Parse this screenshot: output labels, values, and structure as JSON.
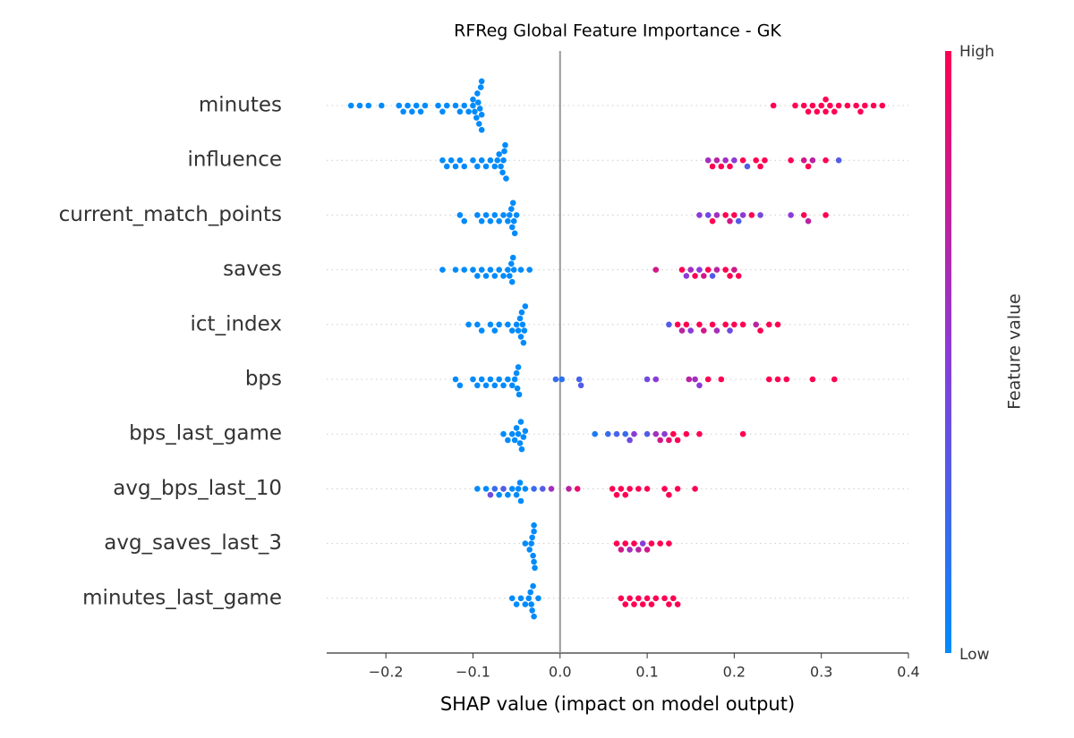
{
  "chart_data": {
    "type": "beeswarm",
    "title": "RFReg Global Feature Importance - GK",
    "xlabel": "SHAP value (impact on model output)",
    "xlim": [
      -0.268,
      0.4
    ],
    "xticks": [
      {
        "value": -0.2,
        "label": "−0.2"
      },
      {
        "value": -0.1,
        "label": "−0.1"
      },
      {
        "value": 0,
        "label": "0.0"
      },
      0.1,
      0.2,
      0.3,
      0.4
    ],
    "colorbar": {
      "label": "Feature value",
      "low": "Low",
      "high": "High",
      "low_color": "#008bfb",
      "mid_color": "#8b3bd8",
      "high_color": "#ff0052"
    },
    "series": [
      {
        "name": "minutes",
        "values": [
          -0.24,
          -0.23,
          -0.22,
          -0.205,
          -0.185,
          -0.18,
          -0.175,
          -0.17,
          -0.165,
          -0.16,
          -0.155,
          -0.14,
          -0.135,
          -0.13,
          -0.12,
          -0.115,
          -0.11,
          -0.105,
          -0.1,
          -0.1,
          -0.098,
          -0.096,
          -0.095,
          -0.094,
          -0.093,
          -0.092,
          -0.091,
          -0.09,
          -0.09,
          -0.09,
          0.245,
          0.27,
          0.28,
          0.285,
          0.29,
          0.295,
          0.3,
          0.305,
          0.305,
          0.31,
          0.315,
          0.32,
          0.33,
          0.34,
          0.345,
          0.35,
          0.36,
          0.37
        ],
        "feature_values": [
          0,
          0,
          0,
          0,
          0,
          0,
          0,
          0,
          0,
          0,
          0,
          0,
          0,
          0,
          0,
          0,
          0,
          0,
          0,
          0,
          0,
          0,
          0,
          0,
          0,
          0,
          0,
          0,
          0,
          0,
          1,
          1,
          1,
          1,
          1,
          1,
          1,
          1,
          1,
          1,
          1,
          1,
          1,
          1,
          1,
          1,
          1,
          1
        ]
      },
      {
        "name": "influence",
        "values": [
          -0.135,
          -0.13,
          -0.125,
          -0.12,
          -0.115,
          -0.11,
          -0.1,
          -0.095,
          -0.09,
          -0.085,
          -0.08,
          -0.075,
          -0.072,
          -0.07,
          -0.068,
          -0.066,
          -0.065,
          -0.064,
          -0.063,
          -0.062,
          0.17,
          0.175,
          0.18,
          0.185,
          0.19,
          0.195,
          0.2,
          0.21,
          0.215,
          0.225,
          0.23,
          0.235,
          0.265,
          0.28,
          0.285,
          0.29,
          0.305,
          0.32
        ],
        "feature_values": [
          0,
          0,
          0,
          0,
          0,
          0,
          0,
          0,
          0,
          0,
          0,
          0,
          0,
          0,
          0,
          0,
          0,
          0,
          0,
          0,
          0.6,
          1,
          0.7,
          1,
          0.6,
          1,
          0.5,
          1,
          0.3,
          1,
          1,
          1,
          1,
          0.8,
          1,
          0.7,
          1,
          0.3
        ]
      },
      {
        "name": "current_match_points",
        "values": [
          -0.115,
          -0.11,
          -0.095,
          -0.09,
          -0.085,
          -0.08,
          -0.075,
          -0.07,
          -0.065,
          -0.06,
          -0.058,
          -0.056,
          -0.055,
          -0.054,
          -0.053,
          -0.052,
          -0.05,
          0.16,
          0.17,
          0.175,
          0.18,
          0.19,
          0.195,
          0.2,
          0.205,
          0.21,
          0.22,
          0.23,
          0.265,
          0.28,
          0.285,
          0.305
        ],
        "feature_values": [
          0,
          0,
          0,
          0,
          0,
          0,
          0,
          0,
          0,
          0,
          0,
          0,
          0,
          0,
          0,
          0,
          0,
          0.5,
          0.4,
          1,
          0.6,
          1,
          0.8,
          1,
          0.3,
          0.5,
          1,
          0.4,
          0.5,
          1,
          0.7,
          1
        ]
      },
      {
        "name": "saves",
        "values": [
          -0.135,
          -0.12,
          -0.11,
          -0.1,
          -0.095,
          -0.09,
          -0.085,
          -0.08,
          -0.075,
          -0.07,
          -0.065,
          -0.06,
          -0.058,
          -0.056,
          -0.055,
          -0.054,
          -0.053,
          -0.045,
          -0.035,
          0.11,
          0.14,
          0.145,
          0.15,
          0.155,
          0.16,
          0.165,
          0.17,
          0.175,
          0.18,
          0.19,
          0.195,
          0.2,
          0.205
        ],
        "feature_values": [
          0,
          0,
          0,
          0,
          0,
          0,
          0,
          0,
          0,
          0,
          0,
          0,
          0,
          0,
          0,
          0,
          0,
          0,
          0,
          0.8,
          1,
          0.5,
          0.6,
          1,
          0.5,
          0.8,
          1,
          0.3,
          0.7,
          1,
          1,
          0.8,
          1
        ]
      },
      {
        "name": "ict_index",
        "values": [
          -0.105,
          -0.095,
          -0.09,
          -0.08,
          -0.075,
          -0.07,
          -0.06,
          -0.055,
          -0.05,
          -0.048,
          -0.046,
          -0.045,
          -0.044,
          -0.043,
          -0.042,
          -0.041,
          -0.04,
          0.125,
          0.135,
          0.14,
          0.145,
          0.15,
          0.16,
          0.165,
          0.175,
          0.18,
          0.19,
          0.195,
          0.2,
          0.21,
          0.225,
          0.23,
          0.24,
          0.25
        ],
        "feature_values": [
          0,
          0,
          0,
          0,
          0,
          0,
          0,
          0,
          0,
          0,
          0,
          0,
          0,
          0,
          0,
          0,
          0,
          0.3,
          1,
          0.7,
          1,
          0.5,
          1,
          0.8,
          1,
          0.6,
          1,
          0.4,
          1,
          1,
          0.7,
          1,
          1,
          1
        ]
      },
      {
        "name": "bps",
        "values": [
          -0.12,
          -0.115,
          -0.1,
          -0.095,
          -0.09,
          -0.085,
          -0.08,
          -0.075,
          -0.07,
          -0.065,
          -0.06,
          -0.055,
          -0.052,
          -0.05,
          -0.049,
          -0.048,
          -0.047,
          -0.005,
          0.002,
          0.022,
          0.024,
          0.1,
          0.11,
          0.148,
          0.155,
          0.16,
          0.17,
          0.185,
          0.24,
          0.25,
          0.26,
          0.29,
          0.315
        ],
        "feature_values": [
          0,
          0,
          0,
          0,
          0,
          0,
          0,
          0,
          0,
          0,
          0,
          0,
          0,
          0,
          0,
          0,
          0,
          0.2,
          0.15,
          0.25,
          0.3,
          0.4,
          0.5,
          0.7,
          0.6,
          0.5,
          1,
          1,
          1,
          1,
          1,
          1,
          1
        ]
      },
      {
        "name": "bps_last_game",
        "values": [
          -0.065,
          -0.06,
          -0.055,
          -0.052,
          -0.05,
          -0.048,
          -0.046,
          -0.045,
          -0.044,
          -0.042,
          -0.04,
          0.04,
          0.055,
          0.065,
          0.075,
          0.08,
          0.085,
          0.1,
          0.11,
          0.115,
          0.12,
          0.125,
          0.13,
          0.135,
          0.145,
          0.16,
          0.21
        ],
        "feature_values": [
          0,
          0,
          0,
          0,
          0,
          0,
          0,
          0,
          0,
          0,
          0,
          0.1,
          0.2,
          0.25,
          0.2,
          0.4,
          0.5,
          0.3,
          0.6,
          0.8,
          0.5,
          0.9,
          1,
          1,
          1,
          1,
          1
        ]
      },
      {
        "name": "avg_bps_last_10",
        "values": [
          -0.095,
          -0.085,
          -0.08,
          -0.075,
          -0.07,
          -0.065,
          -0.06,
          -0.055,
          -0.05,
          -0.048,
          -0.046,
          -0.045,
          -0.04,
          -0.03,
          -0.02,
          -0.01,
          0.01,
          0.02,
          0.06,
          0.065,
          0.07,
          0.075,
          0.08,
          0.09,
          0.1,
          0.12,
          0.125,
          0.135,
          0.155
        ],
        "feature_values": [
          0,
          0,
          0.4,
          0.2,
          0,
          0.3,
          0,
          0,
          0,
          0,
          0,
          0,
          0,
          0.2,
          0.3,
          0.6,
          0.7,
          0.9,
          1,
          1,
          1,
          1,
          1,
          1,
          1,
          1,
          1,
          1,
          1
        ]
      },
      {
        "name": "avg_saves_last_3",
        "values": [
          -0.04,
          -0.035,
          -0.033,
          -0.032,
          -0.031,
          -0.03,
          -0.03,
          -0.03,
          -0.029,
          0.065,
          0.07,
          0.075,
          0.08,
          0.085,
          0.09,
          0.095,
          0.1,
          0.105,
          0.115,
          0.125
        ],
        "feature_values": [
          0,
          0,
          0,
          0,
          0,
          0,
          0,
          0,
          0,
          1,
          0.8,
          1,
          0.6,
          1,
          0.7,
          0.5,
          0.8,
          1,
          1,
          1
        ]
      },
      {
        "name": "minutes_last_game",
        "values": [
          -0.055,
          -0.05,
          -0.045,
          -0.04,
          -0.036,
          -0.034,
          -0.033,
          -0.032,
          -0.031,
          -0.03,
          -0.025,
          0.07,
          0.075,
          0.08,
          0.085,
          0.09,
          0.095,
          0.1,
          0.105,
          0.11,
          0.12,
          0.125,
          0.13,
          0.135
        ],
        "feature_values": [
          0,
          0,
          0,
          0,
          0,
          0,
          0,
          0,
          0,
          0,
          0,
          1,
          1,
          1,
          1,
          1,
          1,
          1,
          1,
          1,
          1,
          1,
          1,
          1
        ]
      }
    ]
  }
}
